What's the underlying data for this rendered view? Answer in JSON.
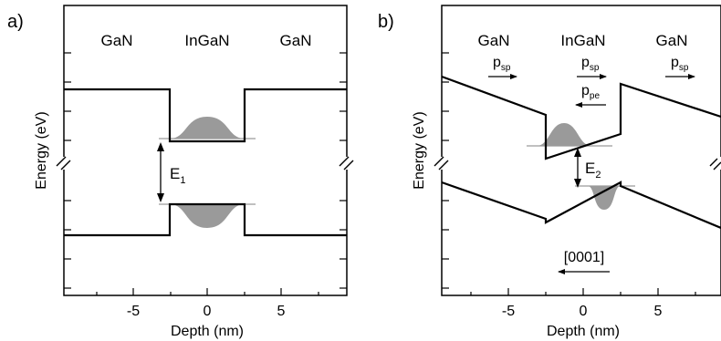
{
  "panels": [
    {
      "id": "a",
      "label": "a)",
      "regions": [
        "GaN",
        "InGaN",
        "GaN"
      ],
      "xlabel": "Depth (nm)",
      "ylabel": "Energy (eV)",
      "xticks": [
        "-5",
        "0",
        "5"
      ],
      "gap_label": {
        "main": "E",
        "sub": "1"
      }
    },
    {
      "id": "b",
      "label": "b)",
      "regions": [
        "GaN",
        "InGaN",
        "GaN"
      ],
      "xlabel": "Depth (nm)",
      "ylabel": "Energy (eV)",
      "xticks": [
        "-5",
        "0",
        "5"
      ],
      "gap_label": {
        "main": "E",
        "sub": "2"
      },
      "polarization": [
        {
          "main": "p",
          "sub": "sp",
          "direction": "right"
        },
        {
          "main": "p",
          "sub": "sp",
          "direction": "right"
        },
        {
          "main": "p",
          "sub": "pe",
          "direction": "left"
        },
        {
          "main": "p",
          "sub": "sp",
          "direction": "right"
        }
      ],
      "direction_label": "[0001]",
      "direction_arrow": "left"
    }
  ],
  "colors": {
    "line": "#000000",
    "wavefunction": "#9a9a9a"
  }
}
